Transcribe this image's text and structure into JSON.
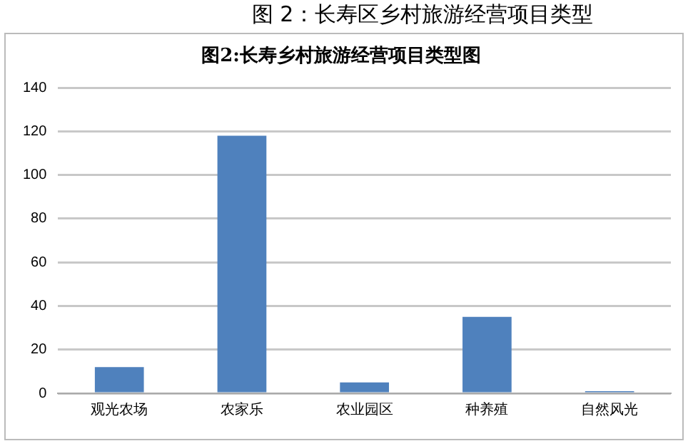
{
  "chart_data": {
    "type": "bar",
    "title": "图 2：长寿区乡村旅游经营项目类型",
    "subtitle": "图2:长寿乡村旅游经营项目类型图",
    "categories": [
      "观光农场",
      "农家乐",
      "农业园区",
      "种养殖",
      "自然风光"
    ],
    "values": [
      12,
      118,
      5,
      35,
      1
    ],
    "color": "#4f81bd",
    "ylim": [
      0,
      140
    ],
    "yticks": [
      0,
      20,
      40,
      60,
      80,
      100,
      120,
      140
    ],
    "grid": "y",
    "legend": false
  }
}
